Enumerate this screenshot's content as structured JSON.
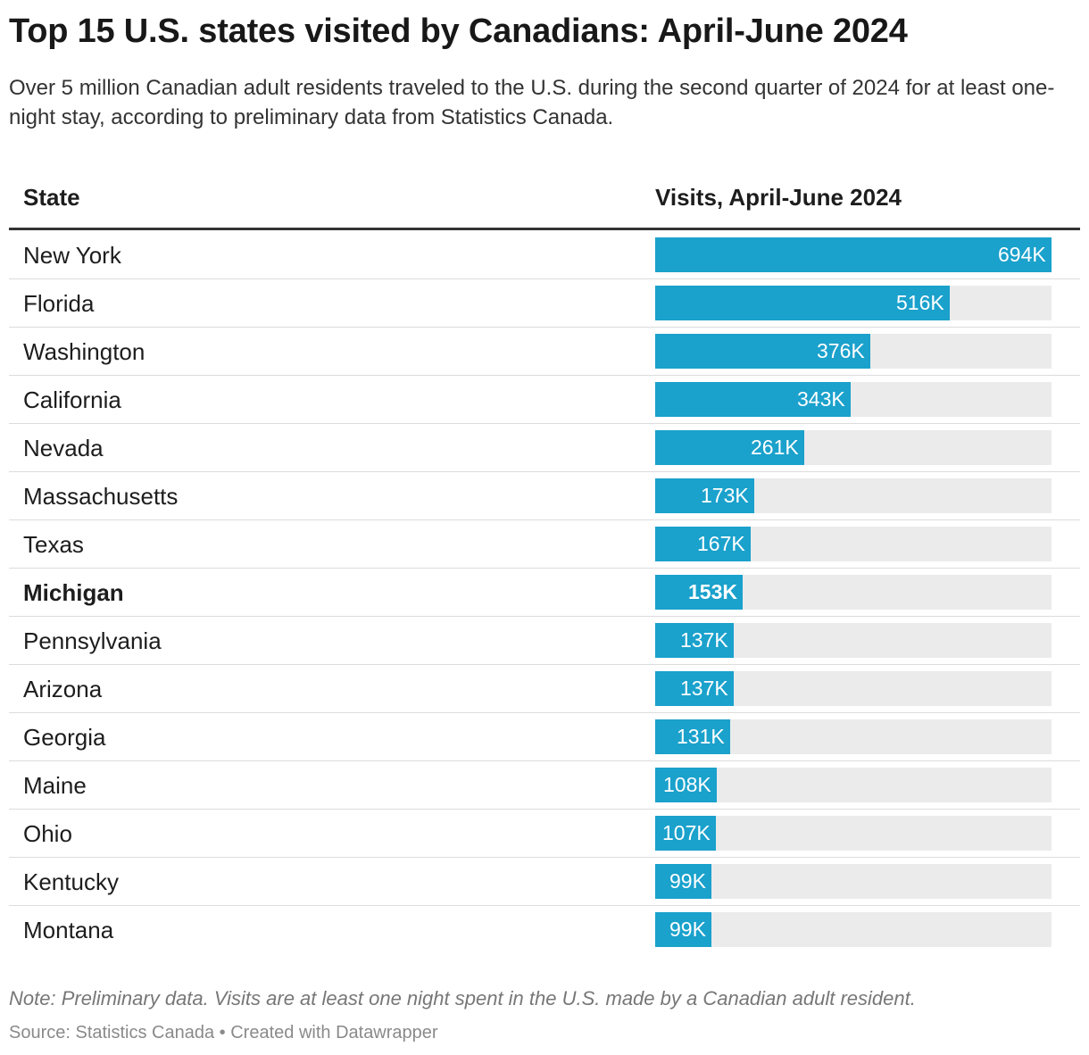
{
  "title": "Top 15 U.S. states visited by Canadians: April-June 2024",
  "subtitle": "Over 5 million Canadian adult residents traveled to the U.S. during the second quarter of 2024 for at least one-night stay, according to preliminary data from Statistics Canada.",
  "table": {
    "col_state": "State",
    "col_visits": "Visits, April-June 2024"
  },
  "chart_data": {
    "type": "bar",
    "orientation": "horizontal",
    "title": "Top 15 U.S. states visited by Canadians: April-June 2024",
    "xlabel": "Visits, April-June 2024",
    "ylabel": "State",
    "xlim": [
      0,
      694
    ],
    "unit": "thousands",
    "categories": [
      "New York",
      "Florida",
      "Washington",
      "California",
      "Nevada",
      "Massachusetts",
      "Texas",
      "Michigan",
      "Pennsylvania",
      "Arizona",
      "Georgia",
      "Maine",
      "Ohio",
      "Kentucky",
      "Montana"
    ],
    "values": [
      694,
      516,
      376,
      343,
      261,
      173,
      167,
      153,
      137,
      137,
      131,
      108,
      107,
      99,
      99
    ],
    "labels": [
      "694K",
      "516K",
      "376K",
      "343K",
      "261K",
      "173K",
      "167K",
      "153K",
      "137K",
      "137K",
      "131K",
      "108K",
      "107K",
      "99K",
      "99K"
    ],
    "highlighted": [
      "Michigan"
    ],
    "bar_color": "#1aa1cc",
    "track_color": "#ebebeb"
  },
  "note": "Note: Preliminary data. Visits are at least one night spent in the U.S. made by a Canadian adult resident.",
  "source": "Source: Statistics Canada • Created with Datawrapper"
}
